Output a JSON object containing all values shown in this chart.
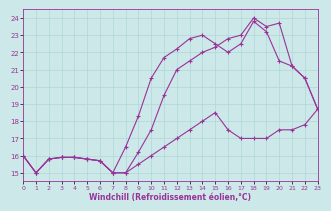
{
  "xlabel": "Windchill (Refroidissement éolien,°C)",
  "xlim": [
    0,
    23
  ],
  "ylim": [
    14.5,
    24.5
  ],
  "yticks": [
    15,
    16,
    17,
    18,
    19,
    20,
    21,
    22,
    23,
    24
  ],
  "xticks": [
    0,
    1,
    2,
    3,
    4,
    5,
    6,
    7,
    8,
    9,
    10,
    11,
    12,
    13,
    14,
    15,
    16,
    17,
    18,
    19,
    20,
    21,
    22,
    23
  ],
  "bg_color": "#cce8e8",
  "grid_color": "#b0d8d8",
  "line_color": "#993399",
  "curve1_x": [
    0,
    1,
    2,
    3,
    4,
    5,
    6,
    7,
    8,
    9,
    10,
    11,
    12,
    13,
    14,
    15,
    16,
    17,
    18,
    19,
    20,
    21,
    22,
    23
  ],
  "curve1_y": [
    16.0,
    15.0,
    15.8,
    15.9,
    15.9,
    15.8,
    15.7,
    15.0,
    15.0,
    16.2,
    17.5,
    19.5,
    21.0,
    21.5,
    22.0,
    22.3,
    22.8,
    23.0,
    24.0,
    23.5,
    23.7,
    21.2,
    20.5,
    18.7
  ],
  "curve2_x": [
    0,
    1,
    2,
    3,
    4,
    5,
    6,
    7,
    8,
    9,
    10,
    11,
    12,
    13,
    14,
    15,
    16,
    17,
    18,
    19,
    20,
    21,
    22,
    23
  ],
  "curve2_y": [
    16.0,
    15.0,
    15.8,
    15.9,
    15.9,
    15.8,
    15.7,
    15.0,
    16.5,
    18.3,
    20.5,
    21.7,
    22.2,
    22.8,
    23.0,
    22.5,
    22.0,
    22.5,
    23.8,
    23.2,
    21.5,
    21.2,
    20.5,
    18.7
  ],
  "curve3_x": [
    0,
    1,
    2,
    3,
    4,
    5,
    6,
    7,
    8,
    9,
    10,
    11,
    12,
    13,
    14,
    15,
    16,
    17,
    18,
    19,
    20,
    21,
    22,
    23
  ],
  "curve3_y": [
    16.0,
    15.0,
    15.8,
    15.9,
    15.9,
    15.8,
    15.7,
    15.0,
    15.0,
    15.5,
    16.0,
    16.5,
    17.0,
    17.5,
    18.0,
    18.5,
    17.5,
    17.0,
    17.0,
    17.0,
    17.5,
    17.5,
    17.8,
    18.7
  ]
}
